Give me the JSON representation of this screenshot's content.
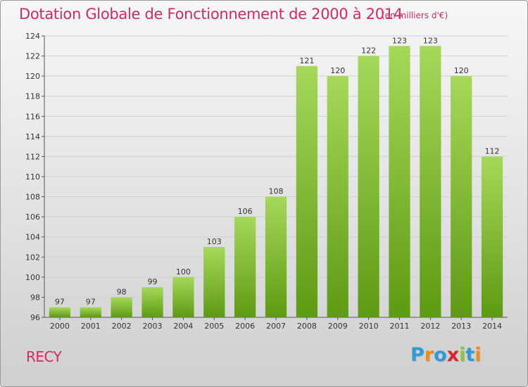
{
  "title": "Dotation Globale de Fonctionnement de 2000 à 2014",
  "unit_note": "(en milliers d'€)",
  "commune": "RECY",
  "logo": {
    "text": "Proxiti",
    "letter_colors": [
      "#2e9bd6",
      "#f08a1c",
      "#2e9bd6",
      "#d9262e",
      "#8cc63f",
      "#2e9bd6",
      "#f08a1c"
    ]
  },
  "colors": {
    "accent": "#cf2a64",
    "bar_light": "#a6d85a",
    "bar_dark": "#5e9a13",
    "grid": "#d0d0d0"
  },
  "chart_data": {
    "type": "bar",
    "title": "Dotation Globale de Fonctionnement de 2000 à 2014",
    "xlabel": "",
    "ylabel": "",
    "ylim": [
      96,
      124
    ],
    "yticks": [
      96,
      98,
      100,
      102,
      104,
      106,
      108,
      110,
      112,
      114,
      116,
      118,
      120,
      122,
      124
    ],
    "categories": [
      "2000",
      "2001",
      "2002",
      "2003",
      "2004",
      "2005",
      "2006",
      "2007",
      "2008",
      "2009",
      "2010",
      "2011",
      "2012",
      "2013",
      "2014"
    ],
    "values": [
      97,
      97,
      98,
      99,
      100,
      103,
      106,
      108,
      121,
      120,
      122,
      123,
      123,
      120,
      112
    ],
    "data_labels": [
      "97",
      "97",
      "98",
      "99",
      "100",
      "103",
      "106",
      "108",
      "121",
      "120",
      "122",
      "123",
      "123",
      "120",
      "112"
    ],
    "grid": true,
    "legend": "none"
  }
}
